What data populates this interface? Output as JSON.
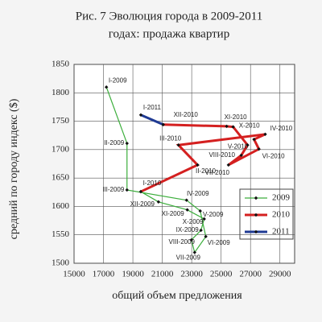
{
  "chart_data": {
    "type": "line",
    "title": [
      "Рис. 7 Эволюция города в 2009-2011",
      "годах: продажа квартир"
    ],
    "x_label": "общий объем предложения",
    "y_label": "средний по городу индекс ($)",
    "xlim": [
      15000,
      30000
    ],
    "xticks": [
      15000,
      17000,
      19000,
      21000,
      23000,
      25000,
      27000,
      29000
    ],
    "ylim": [
      1500,
      1850
    ],
    "yticks": [
      1500,
      1550,
      1600,
      1650,
      1700,
      1750,
      1800,
      1850
    ],
    "grid": true,
    "legend": "lower right",
    "series": [
      {
        "name": "2009",
        "color": "#3cae3c",
        "x": [
          17200,
          18600,
          18600,
          22650,
          23580,
          23960,
          23200,
          22980,
          23630,
          23850,
          22700,
          20740,
          19540
        ],
        "values": [
          1810,
          1711,
          1629,
          1611,
          1592,
          1547,
          1519,
          1541,
          1558,
          1578,
          1594,
          1608,
          1626
        ],
        "labels": [
          "I-2009",
          "II-2009",
          "III-2009",
          "IV-2009",
          "V-2009",
          "VI-2009",
          "VII-2009",
          "VIII-2009",
          "IX-2009",
          "X-2009",
          "XI-2009",
          "XII-2009",
          null
        ]
      },
      {
        "name": "2010",
        "color": "#d42020",
        "x": [
          19540,
          23400,
          22100,
          28000,
          27240,
          27570,
          25500,
          26370,
          26800,
          25820,
          25380,
          21060
        ],
        "values": [
          1626,
          1673,
          1708,
          1727,
          1718,
          1701,
          1673,
          1690,
          1708,
          1740,
          1741,
          1744
        ],
        "labels": [
          "I-2010",
          "II-2010",
          "III-2010",
          "IV-2010",
          "V-2010",
          "VI-2010",
          "VII-2010",
          "VIII-2010",
          null,
          "X-2010",
          "XI-2010",
          "XII-2010"
        ]
      },
      {
        "name": "2011",
        "color": "#1f3a93",
        "x": [
          21060,
          19540
        ],
        "values": [
          1744,
          1761
        ],
        "labels": [
          null,
          "I-2011"
        ]
      }
    ]
  }
}
